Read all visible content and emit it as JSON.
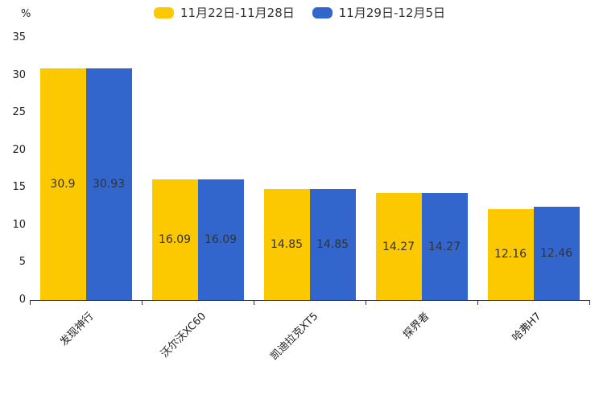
{
  "chart_data": {
    "type": "bar",
    "title": "",
    "categories": [
      "发现神行",
      "沃尔沃XC60",
      "凯迪拉克XT5",
      "探界者",
      "哈弗H7"
    ],
    "series": [
      {
        "name": "11月22日-11月28日",
        "color": "#FCC800",
        "values": [
          30.9,
          16.09,
          14.85,
          14.27,
          12.16
        ]
      },
      {
        "name": "11月29日-12月5日",
        "color": "#3366CC",
        "values": [
          30.93,
          16.09,
          14.85,
          14.27,
          12.46
        ]
      }
    ],
    "value_label_texts": [
      [
        "30.9",
        "16.09",
        "14.85",
        "14.27",
        "12.16"
      ],
      [
        "30.93",
        "16.09",
        "14.85",
        "14.27",
        "12.46"
      ]
    ],
    "ylabel_unit": "%",
    "yticks": [
      0,
      5,
      10,
      15,
      20,
      25,
      30,
      35
    ],
    "ylim": [
      0,
      35
    ],
    "grid": false,
    "legend_position": "top-center",
    "value_labels": "inside-center",
    "axis_color": "#333333",
    "text_color": "#222222",
    "bar_label_color": "#333333",
    "background_color": "#ffffff"
  }
}
